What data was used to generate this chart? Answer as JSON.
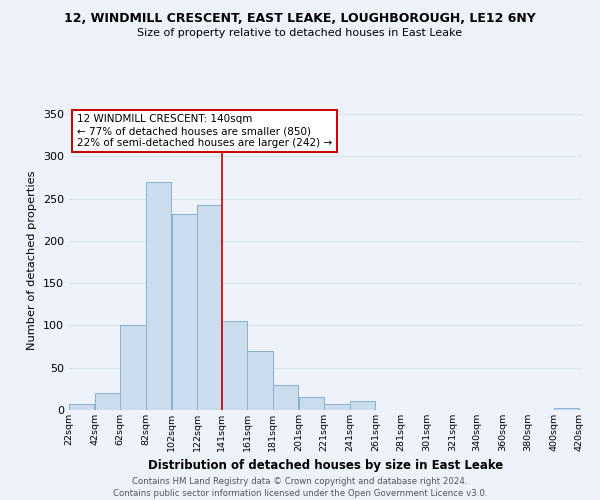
{
  "title1": "12, WINDMILL CRESCENT, EAST LEAKE, LOUGHBOROUGH, LE12 6NY",
  "title2": "Size of property relative to detached houses in East Leake",
  "xlabel": "Distribution of detached houses by size in East Leake",
  "ylabel": "Number of detached properties",
  "bar_left_edges": [
    22,
    42,
    62,
    82,
    102,
    122,
    141,
    161,
    181,
    201,
    221,
    241,
    261,
    281,
    301,
    321,
    340,
    360,
    380,
    400
  ],
  "bar_widths": [
    20,
    20,
    20,
    20,
    20,
    19,
    20,
    20,
    20,
    20,
    20,
    20,
    20,
    20,
    20,
    19,
    20,
    20,
    20,
    20
  ],
  "bar_heights": [
    7,
    20,
    100,
    270,
    232,
    242,
    105,
    70,
    30,
    15,
    7,
    11,
    0,
    0,
    0,
    0,
    0,
    0,
    0,
    2
  ],
  "bar_color": "#ccdcef",
  "bar_edgecolor": "#8ab0d0",
  "property_line_x": 141,
  "property_line_color": "#cc0000",
  "annotation_lines": [
    "12 WINDMILL CRESCENT: 140sqm",
    "← 77% of detached houses are smaller (850)",
    "22% of semi-detached houses are larger (242) →"
  ],
  "ylim": [
    0,
    355
  ],
  "yticks": [
    0,
    50,
    100,
    150,
    200,
    250,
    300,
    350
  ],
  "xtick_labels": [
    "22sqm",
    "42sqm",
    "62sqm",
    "82sqm",
    "102sqm",
    "122sqm",
    "141sqm",
    "161sqm",
    "181sqm",
    "201sqm",
    "221sqm",
    "241sqm",
    "261sqm",
    "281sqm",
    "301sqm",
    "321sqm",
    "340sqm",
    "360sqm",
    "380sqm",
    "400sqm",
    "420sqm"
  ],
  "footer1": "Contains HM Land Registry data © Crown copyright and database right 2024.",
  "footer2": "Contains public sector information licensed under the Open Government Licence v3.0.",
  "grid_color": "#d8e4f0",
  "background_color": "#eef2fa"
}
